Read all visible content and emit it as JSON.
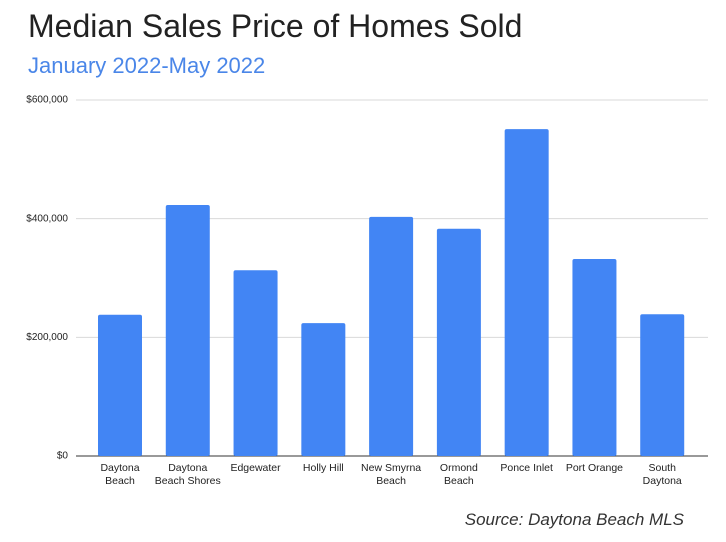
{
  "chart_data": {
    "type": "bar",
    "title": "Median Sales Price of Homes Sold",
    "subtitle": "January 2022-May 2022",
    "annotation": "Source: Daytona Beach MLS",
    "categories": [
      "Daytona Beach",
      "Daytona Beach Shores",
      "Edgewater",
      "Holly Hill",
      "New Smyrna Beach",
      "Ormond Beach",
      "Ponce Inlet",
      "Port Orange",
      "South Daytona"
    ],
    "values": [
      238000,
      423000,
      313000,
      224000,
      403000,
      383000,
      551000,
      332000,
      239000
    ],
    "color": "#4285f4",
    "ylim": [
      0,
      600000
    ],
    "yticks": [
      {
        "value": 0,
        "label": "$0"
      },
      {
        "value": 200000,
        "label": "$200,000"
      },
      {
        "value": 400000,
        "label": "$400,000"
      },
      {
        "value": 600000,
        "label": "$600,000"
      }
    ],
    "grid": true
  }
}
